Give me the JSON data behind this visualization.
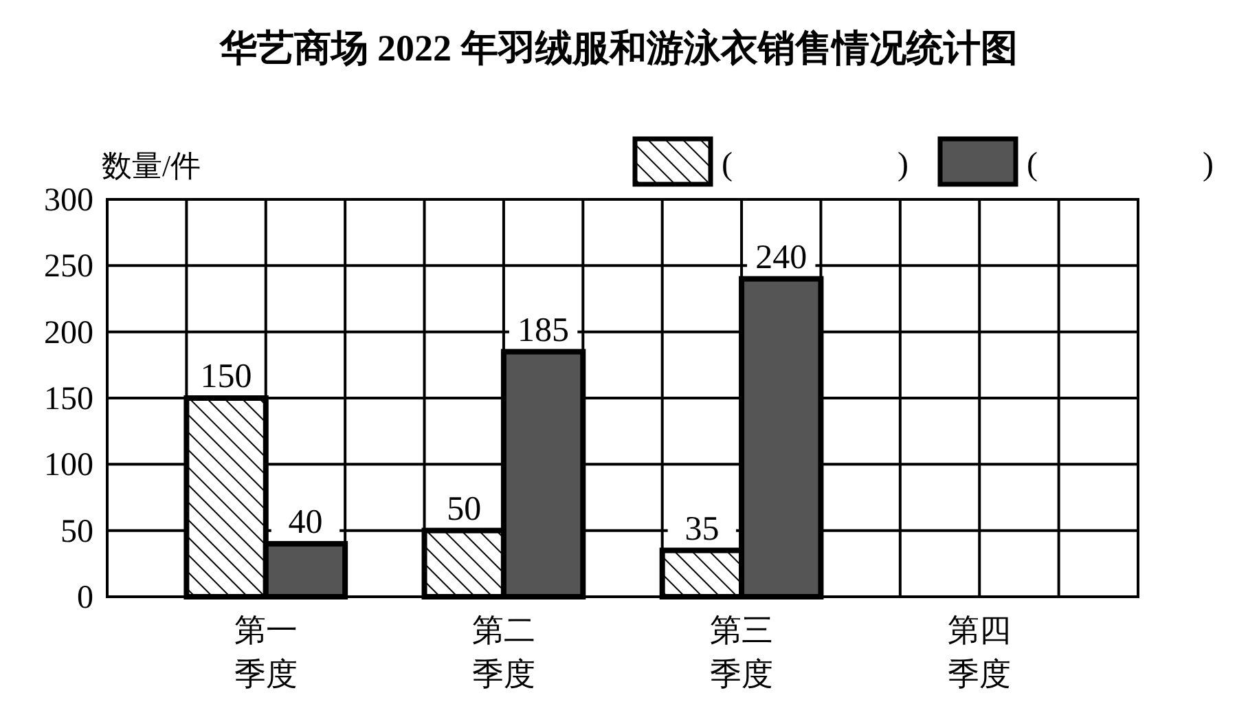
{
  "chart_data": {
    "type": "bar",
    "title": "华艺商场 2022 年羽绒服和游泳衣销售情况统计图",
    "ylabel": "数量/件",
    "categories": [
      "第一季度",
      "第二季度",
      "第三季度",
      "第四季度"
    ],
    "series": [
      {
        "name": "(          )",
        "color": "#000000",
        "values": [
          150,
          50,
          35,
          null
        ]
      },
      {
        "name": "(          )",
        "color": "#555555",
        "values": [
          40,
          185,
          240,
          null
        ]
      }
    ],
    "ylim": [
      0,
      300
    ],
    "yticks": [
      0,
      50,
      100,
      150,
      200,
      250,
      300
    ],
    "grid": true,
    "legend": "top right",
    "data_labels": true
  }
}
